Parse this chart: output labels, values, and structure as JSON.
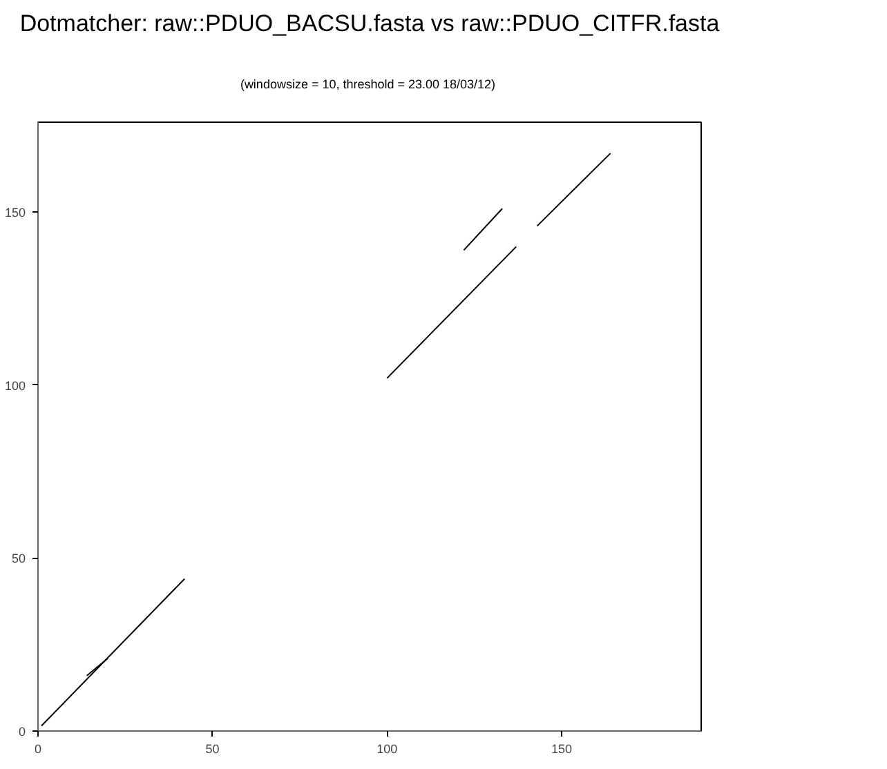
{
  "chart_data": {
    "type": "line",
    "title": "Dotmatcher: raw::PDUO_BACSU.fasta vs raw::PDUO_CITFR.fasta",
    "subtitle": "(windowsize = 10, threshold = 23.00  18/03/12)",
    "series": [
      {
        "color": "#000000",
        "x": [
          1,
          42
        ],
        "values": [
          1.5,
          44
        ]
      },
      {
        "color": "#000000",
        "x": [
          14,
          20
        ],
        "values": [
          16,
          21
        ]
      },
      {
        "color": "#000000",
        "x": [
          100,
          137
        ],
        "values": [
          102,
          140
        ]
      },
      {
        "color": "#000000",
        "x": [
          122,
          133
        ],
        "values": [
          139,
          151
        ]
      },
      {
        "color": "#000000",
        "x": [
          143,
          164
        ],
        "values": [
          146,
          167
        ]
      }
    ],
    "xlim": [
      0,
      190
    ],
    "ylim": [
      0,
      176
    ],
    "xticks": [
      0,
      50,
      100,
      150
    ],
    "yticks": [
      0,
      50,
      100,
      150
    ],
    "grid": false,
    "line_style": "solid"
  }
}
